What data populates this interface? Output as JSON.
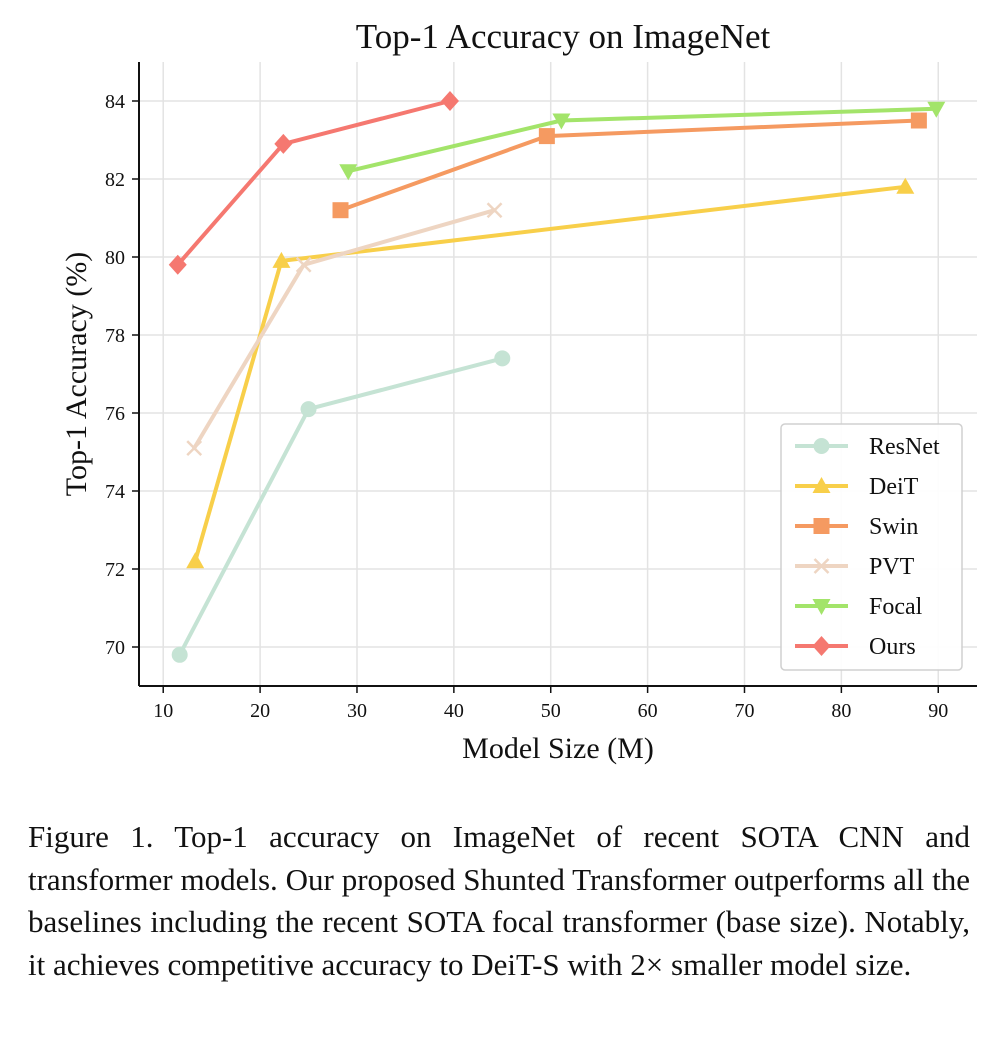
{
  "caption": "Figure 1. Top-1 accuracy on ImageNet of recent SOTA CNN and transformer models.  Our proposed Shunted Transformer outperforms all the baselines including the recent SOTA focal transformer (base size).  Notably, it achieves competitive accuracy to DeiT-S with 2× smaller model size.",
  "chart_data": {
    "type": "line",
    "title": "Top-1 Accuracy on ImageNet",
    "xlabel": "Model Size (M)",
    "ylabel": "Top-1 Accuracy (%)",
    "xlim": [
      7.5,
      94
    ],
    "ylim": [
      69,
      85
    ],
    "xticks": [
      10,
      20,
      30,
      40,
      50,
      60,
      70,
      80,
      90
    ],
    "yticks": [
      70,
      72,
      74,
      76,
      78,
      80,
      82,
      84
    ],
    "grid": true,
    "legend_position": "bottom-right",
    "series": [
      {
        "name": "ResNet",
        "color": "#c5e3d4",
        "marker": "circle",
        "x": [
          11.7,
          25.0,
          45.0
        ],
        "y": [
          69.8,
          76.1,
          77.4
        ]
      },
      {
        "name": "DeiT",
        "color": "#f8cf4a",
        "marker": "triangle-up",
        "x": [
          13.3,
          22.2,
          86.6
        ],
        "y": [
          72.2,
          79.9,
          81.8
        ]
      },
      {
        "name": "Swin",
        "color": "#f59a61",
        "marker": "square",
        "x": [
          28.3,
          49.6,
          88.0
        ],
        "y": [
          81.2,
          83.1,
          83.5
        ]
      },
      {
        "name": "PVT",
        "color": "#eed5c2",
        "marker": "x",
        "x": [
          13.2,
          24.5,
          44.2
        ],
        "y": [
          75.1,
          79.8,
          81.2
        ]
      },
      {
        "name": "Focal",
        "color": "#a3e46a",
        "marker": "triangle-down",
        "x": [
          29.1,
          51.1,
          89.8
        ],
        "y": [
          82.2,
          83.5,
          83.8
        ]
      },
      {
        "name": "Ours",
        "color": "#f57870",
        "marker": "diamond",
        "x": [
          11.5,
          22.4,
          39.6
        ],
        "y": [
          79.8,
          82.9,
          84.0
        ]
      }
    ]
  }
}
